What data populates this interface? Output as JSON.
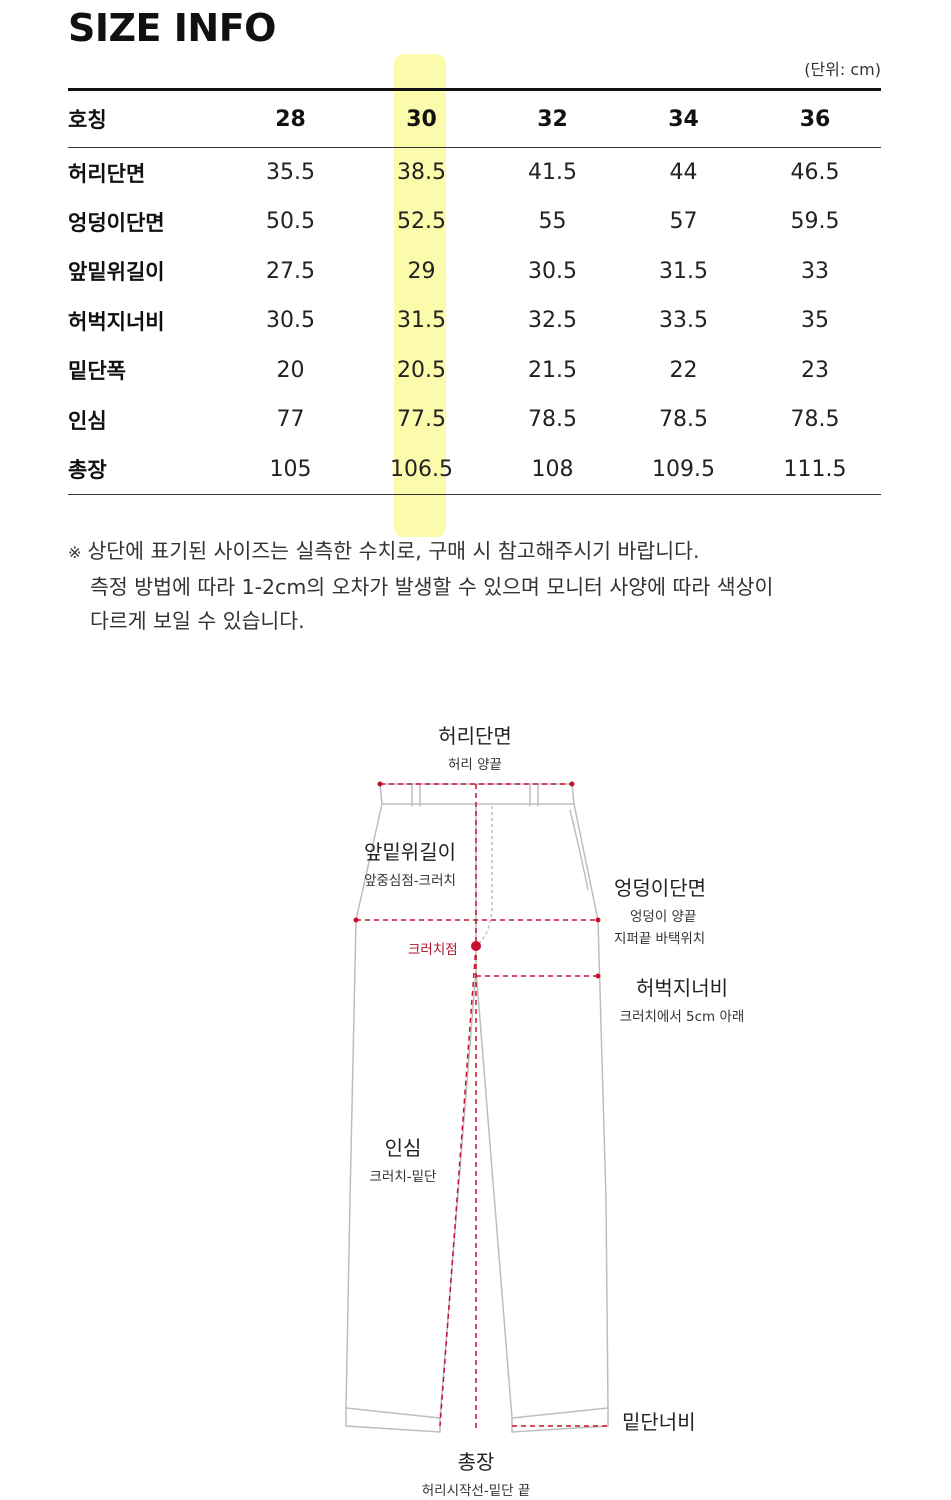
{
  "title": "SIZE INFO",
  "unit": "(단위: cm)",
  "table": {
    "header_label": "호칭",
    "sizes": [
      "28",
      "30",
      "32",
      "34",
      "36"
    ],
    "highlighted_size": "30",
    "rows": [
      {
        "label": "허리단면",
        "values": [
          "35.5",
          "38.5",
          "41.5",
          "44",
          "46.5"
        ]
      },
      {
        "label": "엉덩이단면",
        "values": [
          "50.5",
          "52.5",
          "55",
          "57",
          "59.5"
        ]
      },
      {
        "label": "앞밑위길이",
        "values": [
          "27.5",
          "29",
          "30.5",
          "31.5",
          "33"
        ]
      },
      {
        "label": "허벅지너비",
        "values": [
          "30.5",
          "31.5",
          "32.5",
          "33.5",
          "35"
        ]
      },
      {
        "label": "밑단폭",
        "values": [
          "20",
          "20.5",
          "21.5",
          "22",
          "23"
        ]
      },
      {
        "label": "인심",
        "values": [
          "77",
          "77.5",
          "78.5",
          "78.5",
          "78.5"
        ]
      },
      {
        "label": "총장",
        "values": [
          "105",
          "106.5",
          "108",
          "109.5",
          "111.5"
        ]
      }
    ]
  },
  "note": {
    "mark": "※",
    "line1": "상단에 표기된 사이즈는 실측한 수치로, 구매 시 참고해주시기 바랍니다.",
    "line2": "측정 방법에 따라 1-2cm의 오차가 발생할 수 있으며 모니터 사양에 따라 색상이",
    "line3": "다르게 보일 수 있습니다."
  },
  "diagram": {
    "waist": {
      "main": "허리단면",
      "sub": "허리 양끝"
    },
    "front_rise": {
      "main": "앞밑위길이",
      "sub": "앞중심점-크러치"
    },
    "hip": {
      "main": "엉덩이단면",
      "sub1": "엉덩이 양끝",
      "sub2": "지퍼끝 바택위치"
    },
    "crotch_point": "크러치점",
    "thigh": {
      "main": "허벅지너비",
      "sub": "크러치에서 5cm 아래"
    },
    "inseam": {
      "main": "인심",
      "sub": "크러치-밑단"
    },
    "hem": {
      "main": "밑단너비"
    },
    "total": {
      "main": "총장",
      "sub": "허리시작선-밑단 끝"
    }
  },
  "colors": {
    "highlight": "#fbfa9e",
    "measure_line": "#c8102e",
    "outline": "#bdbdbd",
    "text": "#222222"
  }
}
